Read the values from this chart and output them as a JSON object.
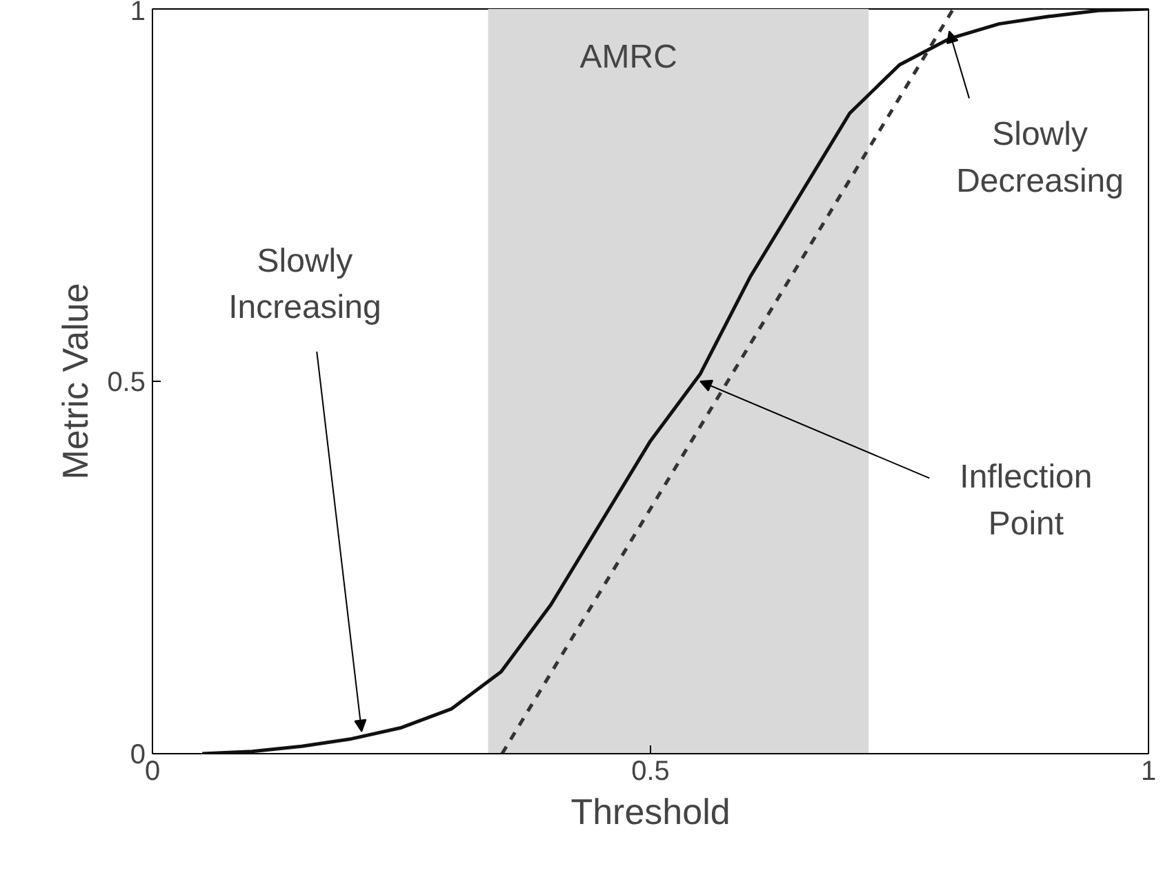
{
  "chart_data": {
    "type": "line",
    "xlabel": "Threshold",
    "ylabel": "Metric Value",
    "xlim": [
      0,
      1
    ],
    "ylim": [
      0,
      1
    ],
    "xticks": [
      0,
      0.5,
      1
    ],
    "yticks": [
      0,
      0.5,
      1
    ],
    "grid": false,
    "series": [
      {
        "color": "#111111",
        "line_style": "solid",
        "x": [
          0.05,
          0.1,
          0.15,
          0.2,
          0.25,
          0.3,
          0.35,
          0.4,
          0.45,
          0.5,
          0.55,
          0.6,
          0.65,
          0.7,
          0.75,
          0.8,
          0.85,
          0.9,
          0.95,
          1.0
        ],
        "values": [
          0,
          0.003,
          0.01,
          0.02,
          0.035,
          0.06,
          0.11,
          0.2,
          0.31,
          0.42,
          0.51,
          0.64,
          0.75,
          0.86,
          0.925,
          0.96,
          0.98,
          0.99,
          0.998,
          1.0
        ]
      },
      {
        "color": "#333333",
        "line_style": "dashed",
        "x": [
          0.351,
          0.804
        ],
        "values": [
          0,
          1
        ]
      }
    ],
    "bands": [
      {
        "axis": "x",
        "from": 0.337,
        "to": 0.719,
        "label": "AMRC",
        "color": "#d9d9d9"
      }
    ],
    "annotations": [
      {
        "text": "Slowly\nIncreasing",
        "x": 0.21,
        "y": 0.03
      },
      {
        "text": "Inflection\nPoint",
        "x": 0.55,
        "y": 0.5
      },
      {
        "text": "Slowly\nDecreasing",
        "x": 0.8,
        "y": 0.97
      }
    ]
  }
}
